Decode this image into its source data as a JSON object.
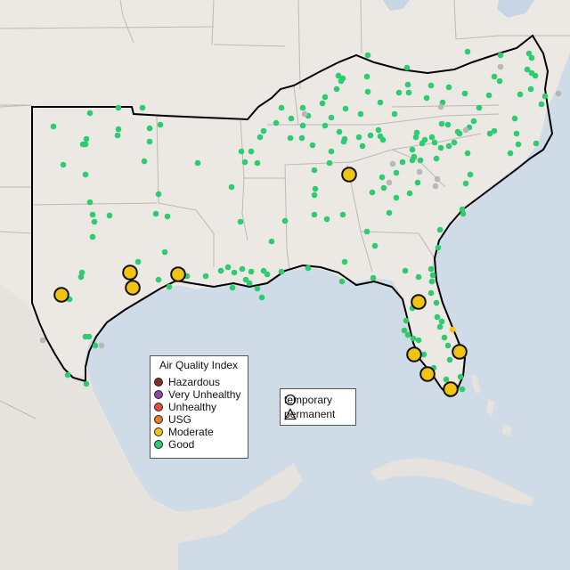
{
  "map": {
    "title": "",
    "colors": {
      "ocean": "#cfdbe6",
      "land": "#ece8e4",
      "foreign_land": "#e4e0dc",
      "state_border": "#bdbab6",
      "region_outline": "#000000",
      "water_inland": "#c6d6e4"
    }
  },
  "aqi_legend": {
    "title": "Air Quality Index",
    "items": [
      {
        "label": "Hazardous",
        "color": "#7e2e23"
      },
      {
        "label": "Very Unhealthy",
        "color": "#8e44ad"
      },
      {
        "label": "Unhealthy",
        "color": "#e74c3c"
      },
      {
        "label": "USG",
        "color": "#e67e22"
      },
      {
        "label": "Moderate",
        "color": "#f1c40f"
      },
      {
        "label": "Good",
        "color": "#2ecc71"
      }
    ]
  },
  "type_legend": {
    "items": [
      {
        "label": "temporary",
        "symbol": "circle-icon"
      },
      {
        "label": "permanent",
        "symbol": "triangle-icon"
      }
    ]
  },
  "monitors": {
    "moderate_color": "#f1c40f",
    "good_color": "#2ecc71",
    "offline_color": "#b8b8b8"
  }
}
